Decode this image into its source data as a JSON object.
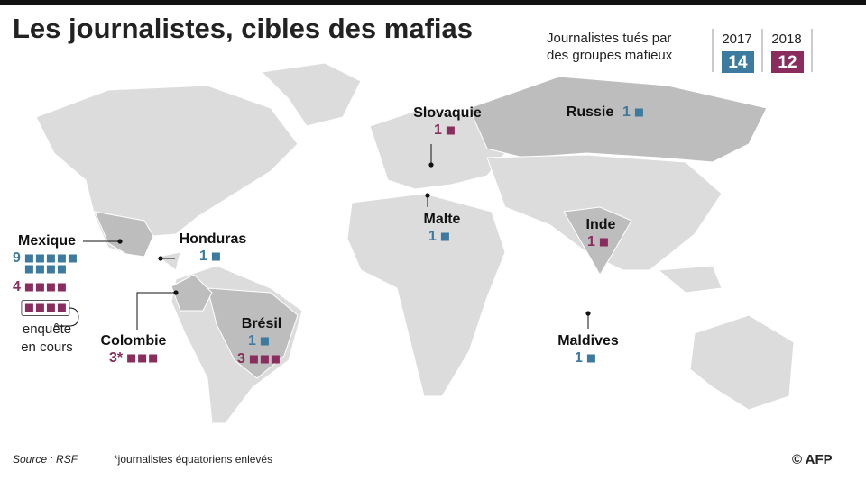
{
  "title": "Les journalistes, cibles des mafias",
  "legend": {
    "label_lines": [
      "Journalistes tués par",
      "des groupes mafieux"
    ],
    "years": [
      {
        "year": "2017",
        "total": 14,
        "color": "#3c7a9f"
      },
      {
        "year": "2018",
        "total": 12,
        "color": "#8a2c5d"
      }
    ]
  },
  "countries": [
    {
      "name": "Slovaquie",
      "values": [
        null,
        1
      ]
    },
    {
      "name": "Russie",
      "values": [
        1,
        null
      ]
    },
    {
      "name": "Malte",
      "values": [
        1,
        null
      ]
    },
    {
      "name": "Inde",
      "values": [
        null,
        1
      ]
    },
    {
      "name": "Maldives",
      "values": [
        1,
        null
      ]
    },
    {
      "name": "Honduras",
      "values": [
        1,
        null
      ]
    },
    {
      "name": "Mexique",
      "values": [
        9,
        4
      ],
      "pending": [
        null,
        4
      ],
      "pending_label_lines": [
        "enquête",
        "en cours"
      ]
    },
    {
      "name": "Colombie",
      "values": [
        null,
        {
          "value": 3,
          "label": "3*"
        }
      ]
    },
    {
      "name": "Brésil",
      "values": [
        1,
        3
      ]
    }
  ],
  "source": "Source : RSF",
  "note": "*journalistes équatoriens enlevés",
  "credit": "© AFP"
}
